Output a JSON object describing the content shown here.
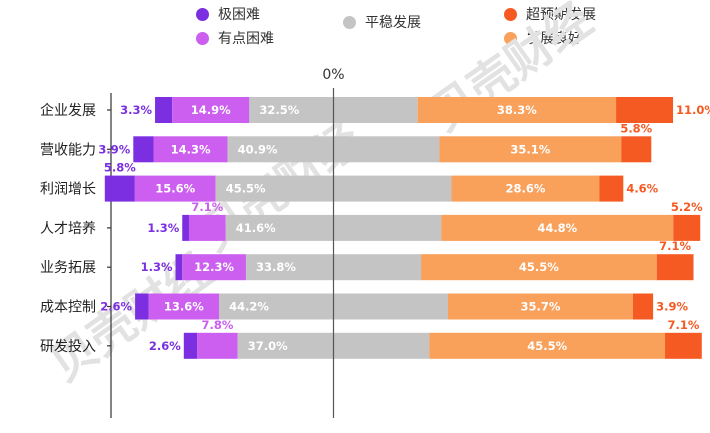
{
  "chart_data": {
    "type": "bar",
    "stacked": "diverging",
    "center_label": "0%",
    "categories": [
      "企业发展",
      "营收能力",
      "利润增长",
      "人才培养",
      "业务拓展",
      "成本控制",
      "研发投入"
    ],
    "series": [
      {
        "name": "极困难",
        "color": "#7b2fe0",
        "values": [
          3.3,
          3.9,
          5.8,
          1.3,
          1.3,
          2.6,
          2.6
        ]
      },
      {
        "name": "有点困难",
        "color": "#cc5ff0",
        "values": [
          14.9,
          14.3,
          15.6,
          7.1,
          12.3,
          13.6,
          7.8
        ]
      },
      {
        "name": "平稳发展",
        "color": "#c4c4c4",
        "values": [
          32.5,
          40.9,
          45.5,
          41.6,
          33.8,
          44.2,
          37.0
        ]
      },
      {
        "name": "发展良好",
        "color": "#f9a05a",
        "values": [
          38.3,
          35.1,
          28.6,
          44.8,
          45.5,
          35.7,
          45.5
        ]
      },
      {
        "name": "超预期发展",
        "color": "#f55a22",
        "values": [
          11.0,
          5.8,
          4.6,
          5.2,
          7.1,
          3.9,
          7.1
        ]
      }
    ],
    "data_labels": [
      [
        "3.3%",
        "14.9%",
        "32.5%",
        "38.3%",
        "11.0%"
      ],
      [
        "3.9%",
        "14.3%",
        "40.9%",
        "35.1%",
        "5.8%"
      ],
      [
        "5.8%",
        "15.6%",
        "45.5%",
        "28.6%",
        "4.6%"
      ],
      [
        "1.3%",
        "7.1%",
        "41.6%",
        "44.8%",
        "5.2%"
      ],
      [
        "1.3%",
        "12.3%",
        "33.8%",
        "45.5%",
        "7.1%"
      ],
      [
        "2.6%",
        "13.6%",
        "44.2%",
        "35.7%",
        "3.9%"
      ],
      [
        "2.6%",
        "7.8%",
        "37.0%",
        "45.5%",
        "7.1%"
      ]
    ],
    "legend_position": "top"
  },
  "watermark": "贝壳财经"
}
